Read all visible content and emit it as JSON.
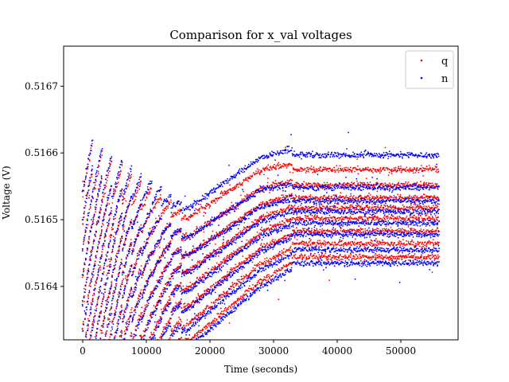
{
  "chart_data": {
    "type": "scatter",
    "title": "Comparison for x_val voltages",
    "xlabel": "Time (seconds)",
    "ylabel": "Voltage (V)",
    "xlim": [
      -3000,
      59000
    ],
    "ylim": [
      0.51632,
      0.51676
    ],
    "xticks": [
      0,
      10000,
      20000,
      30000,
      40000,
      50000
    ],
    "yticks": [
      0.5164,
      0.5165,
      0.5166,
      0.5167
    ],
    "ytick_labels": [
      "0.5164",
      "0.5165",
      "0.5166",
      "0.5167"
    ],
    "grid": false,
    "legend_position": "top-right",
    "series": [
      {
        "name": "q",
        "color": "#ff0000",
        "marker": "dot",
        "x_range": [
          0,
          56000
        ],
        "stripe_offsets_at_start": [
          0.0,
          1.9e-05,
          3.8e-05,
          5.7e-05,
          7.6e-05,
          9.5e-05,
          0.000114,
          0.000133
        ],
        "stripe_levels_at_end": [
          0.516444,
          0.516464,
          0.516483,
          0.516502,
          0.516518,
          0.516533,
          0.516552,
          0.516575
        ],
        "min_at_x": 16500
      },
      {
        "name": "n",
        "color": "#0000ff",
        "marker": "dot",
        "x_range": [
          0,
          56000
        ],
        "stripe_offsets_at_start": [
          0.0,
          2e-05,
          4e-05,
          6e-05,
          8e-05,
          0.0001,
          0.00012,
          0.00014
        ],
        "stripe_levels_at_end": [
          0.516435,
          0.516455,
          0.516478,
          0.516495,
          0.516512,
          0.516528,
          0.516548,
          0.516597
        ],
        "min_at_x": 16500
      }
    ]
  }
}
